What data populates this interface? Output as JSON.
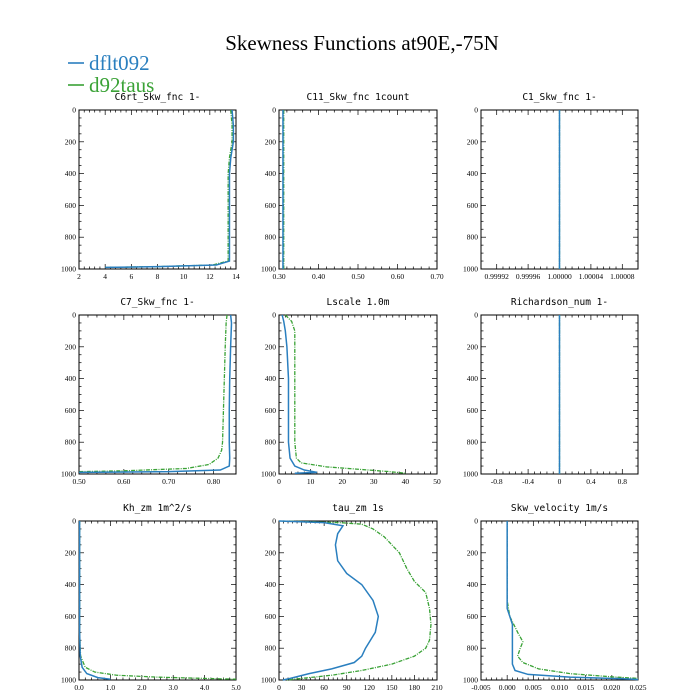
{
  "figure": {
    "title": "Skewness Functions at90E,-75N"
  },
  "legend": {
    "items": [
      {
        "label": "dflt092",
        "color": "#2a7fbf"
      },
      {
        "label": "d92taus",
        "color": "#3aa236"
      }
    ]
  },
  "chart_data": [
    {
      "type": "line",
      "title": "C6rt_Skw_fnc   1-",
      "xlim": [
        2,
        14
      ],
      "ylim": [
        1000,
        0
      ],
      "xticks": [
        2,
        4,
        6,
        8,
        10,
        12,
        14
      ],
      "xtick_labels": [
        "2",
        "4",
        "6",
        "8",
        "10",
        "12",
        "14"
      ],
      "yticks": [
        0,
        200,
        400,
        600,
        800,
        1000
      ],
      "ytick_labels": [
        "0",
        "200",
        "400",
        "600",
        "800",
        "1000"
      ],
      "series": [
        {
          "name": "dflt092",
          "points": [
            [
              13.7,
              0
            ],
            [
              13.8,
              100
            ],
            [
              13.8,
              200
            ],
            [
              13.6,
              300
            ],
            [
              13.5,
              400
            ],
            [
              13.5,
              500
            ],
            [
              13.5,
              600
            ],
            [
              13.5,
              700
            ],
            [
              13.5,
              800
            ],
            [
              13.5,
              900
            ],
            [
              13.5,
              950
            ],
            [
              12.5,
              975
            ],
            [
              8,
              985
            ],
            [
              4,
              990
            ]
          ]
        },
        {
          "name": "d92taus",
          "points": [
            [
              13.6,
              0
            ],
            [
              13.7,
              100
            ],
            [
              13.7,
              200
            ],
            [
              13.5,
              300
            ],
            [
              13.4,
              400
            ],
            [
              13.4,
              500
            ],
            [
              13.4,
              600
            ],
            [
              13.4,
              700
            ],
            [
              13.4,
              800
            ],
            [
              13.4,
              900
            ],
            [
              13.4,
              950
            ],
            [
              12.2,
              975
            ],
            [
              8,
              985
            ],
            [
              4,
              990
            ]
          ]
        }
      ]
    },
    {
      "type": "line",
      "title": "C11_Skw_fnc   1count",
      "xlim": [
        0.3,
        0.7
      ],
      "ylim": [
        1000,
        0
      ],
      "xticks": [
        0.3,
        0.4,
        0.5,
        0.6,
        0.7
      ],
      "xtick_labels": [
        "0.30",
        "0.40",
        "0.50",
        "0.60",
        "0.70"
      ],
      "yticks": [
        0,
        200,
        400,
        600,
        800,
        1000
      ],
      "ytick_labels": [
        "0",
        "200",
        "400",
        "600",
        "800",
        "1000"
      ],
      "series": [
        {
          "name": "dflt092",
          "points": [
            [
              0.31,
              0
            ],
            [
              0.31,
              1000
            ]
          ]
        },
        {
          "name": "d92taus",
          "points": [
            [
              0.312,
              0
            ],
            [
              0.312,
              1000
            ]
          ]
        }
      ]
    },
    {
      "type": "line",
      "title": "C1_Skw_fnc   1-",
      "xlim": [
        0.9999,
        1.0001
      ],
      "ylim": [
        1000,
        0
      ],
      "xticks": [
        0.99992,
        0.99996,
        1.0,
        1.00004,
        1.00008
      ],
      "xtick_labels": [
        "0.99992",
        "0.99996",
        "1.00000",
        "1.00004",
        "1.00008"
      ],
      "yticks": [
        0,
        200,
        400,
        600,
        800,
        1000
      ],
      "ytick_labels": [
        "0",
        "200",
        "400",
        "600",
        "800",
        "1000"
      ],
      "series": [
        {
          "name": "dflt092",
          "points": [
            [
              1.0,
              0
            ],
            [
              1.0,
              1000
            ]
          ]
        },
        {
          "name": "d92taus",
          "points": [
            [
              1.0,
              0
            ],
            [
              1.0,
              1000
            ]
          ]
        }
      ]
    },
    {
      "type": "line",
      "title": "C7_Skw_fnc   1-",
      "xlim": [
        0.5,
        0.85
      ],
      "ylim": [
        1000,
        0
      ],
      "xticks": [
        0.5,
        0.6,
        0.7,
        0.8
      ],
      "xtick_labels": [
        "0.50",
        "0.60",
        "0.70",
        "0.80"
      ],
      "yticks": [
        0,
        200,
        400,
        600,
        800,
        1000
      ],
      "ytick_labels": [
        "0",
        "200",
        "400",
        "600",
        "800",
        "1000"
      ],
      "series": [
        {
          "name": "dflt092",
          "points": [
            [
              0.838,
              0
            ],
            [
              0.84,
              50
            ],
            [
              0.838,
              200
            ],
            [
              0.836,
              400
            ],
            [
              0.835,
              600
            ],
            [
              0.835,
              800
            ],
            [
              0.836,
              900
            ],
            [
              0.835,
              950
            ],
            [
              0.815,
              975
            ],
            [
              0.7,
              985
            ],
            [
              0.5,
              990
            ]
          ]
        },
        {
          "name": "d92taus",
          "points": [
            [
              0.83,
              0
            ],
            [
              0.828,
              50
            ],
            [
              0.826,
              200
            ],
            [
              0.824,
              400
            ],
            [
              0.822,
              600
            ],
            [
              0.82,
              800
            ],
            [
              0.818,
              850
            ],
            [
              0.81,
              900
            ],
            [
              0.79,
              940
            ],
            [
              0.74,
              965
            ],
            [
              0.6,
              980
            ],
            [
              0.5,
              985
            ]
          ]
        }
      ]
    },
    {
      "type": "line",
      "title": "Lscale   1.0m",
      "xlim": [
        0,
        50
      ],
      "ylim": [
        1000,
        0
      ],
      "xticks": [
        0,
        10,
        20,
        30,
        40,
        50
      ],
      "xtick_labels": [
        "0",
        "10",
        "20",
        "30",
        "40",
        "50"
      ],
      "yticks": [
        0,
        200,
        400,
        600,
        800,
        1000
      ],
      "ytick_labels": [
        "0",
        "200",
        "400",
        "600",
        "800",
        "1000"
      ],
      "series": [
        {
          "name": "dflt092",
          "points": [
            [
              1,
              0
            ],
            [
              1.5,
              40
            ],
            [
              2,
              100
            ],
            [
              2.5,
              200
            ],
            [
              3,
              400
            ],
            [
              3,
              600
            ],
            [
              3,
              800
            ],
            [
              3.5,
              900
            ],
            [
              5,
              950
            ],
            [
              8,
              975
            ],
            [
              12,
              990
            ],
            [
              5,
              995
            ]
          ]
        },
        {
          "name": "d92taus",
          "points": [
            [
              2,
              0
            ],
            [
              4,
              40
            ],
            [
              5,
              100
            ],
            [
              5,
              200
            ],
            [
              5,
              400
            ],
            [
              5,
              600
            ],
            [
              5,
              800
            ],
            [
              5.5,
              900
            ],
            [
              7,
              930
            ],
            [
              15,
              955
            ],
            [
              25,
              970
            ],
            [
              35,
              985
            ],
            [
              40,
              995
            ]
          ]
        }
      ]
    },
    {
      "type": "line",
      "title": "Richardson_num   1-",
      "xlim": [
        -1,
        1
      ],
      "ylim": [
        1000,
        0
      ],
      "xticks": [
        -0.8,
        -0.4,
        0,
        0.4,
        0.8
      ],
      "xtick_labels": [
        "-0.8",
        "-0.4",
        "0",
        "0.4",
        "0.8"
      ],
      "yticks": [
        0,
        200,
        400,
        600,
        800,
        1000
      ],
      "ytick_labels": [
        "0",
        "200",
        "400",
        "600",
        "800",
        "1000"
      ],
      "series": [
        {
          "name": "dflt092",
          "points": [
            [
              0,
              0
            ],
            [
              0,
              1000
            ]
          ]
        },
        {
          "name": "d92taus",
          "points": [
            [
              0,
              0
            ],
            [
              0,
              1000
            ]
          ]
        }
      ]
    },
    {
      "type": "line",
      "title": "Kh_zm   1m^2/s",
      "xlim": [
        0,
        5
      ],
      "ylim": [
        1000,
        0
      ],
      "xticks": [
        0,
        1,
        2,
        3,
        4,
        5
      ],
      "xtick_labels": [
        "0.0",
        "1.0",
        "2.0",
        "3.0",
        "4.0",
        "5.0"
      ],
      "yticks": [
        0,
        200,
        400,
        600,
        800,
        1000
      ],
      "ytick_labels": [
        "0",
        "200",
        "400",
        "600",
        "800",
        "1000"
      ],
      "series": [
        {
          "name": "dflt092",
          "points": [
            [
              0.02,
              0
            ],
            [
              0.02,
              700
            ],
            [
              0.04,
              850
            ],
            [
              0.1,
              920
            ],
            [
              0.25,
              960
            ],
            [
              0.6,
              985
            ],
            [
              1.0,
              995
            ]
          ]
        },
        {
          "name": "d92taus",
          "points": [
            [
              0.02,
              0
            ],
            [
              0.02,
              700
            ],
            [
              0.05,
              850
            ],
            [
              0.2,
              920
            ],
            [
              0.5,
              950
            ],
            [
              1.2,
              970
            ],
            [
              2.5,
              982
            ],
            [
              4.0,
              990
            ],
            [
              5.0,
              995
            ]
          ]
        }
      ]
    },
    {
      "type": "line",
      "title": "tau_zm   1s",
      "xlim": [
        0,
        210
      ],
      "ylim": [
        1000,
        0
      ],
      "xticks": [
        0,
        30,
        60,
        90,
        120,
        150,
        180,
        210
      ],
      "xtick_labels": [
        "0",
        "30",
        "60",
        "90",
        "120",
        "150",
        "180",
        "210"
      ],
      "yticks": [
        0,
        200,
        400,
        600,
        800,
        1000
      ],
      "ytick_labels": [
        "0",
        "200",
        "400",
        "600",
        "800",
        "1000"
      ],
      "series": [
        {
          "name": "dflt092",
          "points": [
            [
              0,
              0
            ],
            [
              60,
              10
            ],
            [
              85,
              30
            ],
            [
              78,
              80
            ],
            [
              75,
              150
            ],
            [
              78,
              250
            ],
            [
              90,
              330
            ],
            [
              110,
              400
            ],
            [
              125,
              500
            ],
            [
              132,
              600
            ],
            [
              128,
              700
            ],
            [
              115,
              800
            ],
            [
              110,
              850
            ],
            [
              100,
              890
            ],
            [
              70,
              930
            ],
            [
              40,
              960
            ],
            [
              15,
              990
            ],
            [
              5,
              1000
            ]
          ]
        },
        {
          "name": "d92taus",
          "points": [
            [
              5,
              0
            ],
            [
              80,
              10
            ],
            [
              110,
              20
            ],
            [
              125,
              50
            ],
            [
              140,
              100
            ],
            [
              160,
              200
            ],
            [
              170,
              300
            ],
            [
              180,
              380
            ],
            [
              195,
              450
            ],
            [
              200,
              550
            ],
            [
              202,
              650
            ],
            [
              200,
              750
            ],
            [
              195,
              800
            ],
            [
              180,
              850
            ],
            [
              150,
              900
            ],
            [
              110,
              940
            ],
            [
              70,
              970
            ],
            [
              30,
              990
            ],
            [
              10,
              1000
            ]
          ]
        }
      ]
    },
    {
      "type": "line",
      "title": "Skw_velocity   1m/s",
      "xlim": [
        -0.005,
        0.025
      ],
      "ylim": [
        1000,
        0
      ],
      "xticks": [
        -0.005,
        0.0,
        0.005,
        0.01,
        0.015,
        0.02,
        0.025
      ],
      "xtick_labels": [
        "-0.005",
        "0.000",
        "0.005",
        "0.010",
        "0.015",
        "0.020",
        "0.025"
      ],
      "yticks": [
        0,
        200,
        400,
        600,
        800,
        1000
      ],
      "ytick_labels": [
        "0",
        "200",
        "400",
        "600",
        "800",
        "1000"
      ],
      "series": [
        {
          "name": "dflt092",
          "points": [
            [
              0.0,
              0
            ],
            [
              0.0,
              400
            ],
            [
              0.0,
              550
            ],
            [
              0.001,
              650
            ],
            [
              0.001,
              800
            ],
            [
              0.001,
              900
            ],
            [
              0.0015,
              940
            ],
            [
              0.004,
              965
            ],
            [
              0.012,
              982
            ],
            [
              0.022,
              992
            ],
            [
              0.025,
              997
            ]
          ]
        },
        {
          "name": "d92taus",
          "points": [
            [
              0.0,
              0
            ],
            [
              0.0,
              300
            ],
            [
              0.0,
              500
            ],
            [
              0.0005,
              600
            ],
            [
              0.002,
              700
            ],
            [
              0.003,
              760
            ],
            [
              0.0025,
              800
            ],
            [
              0.002,
              850
            ],
            [
              0.003,
              890
            ],
            [
              0.006,
              930
            ],
            [
              0.012,
              960
            ],
            [
              0.02,
              980
            ],
            [
              0.025,
              990
            ]
          ]
        }
      ]
    }
  ]
}
